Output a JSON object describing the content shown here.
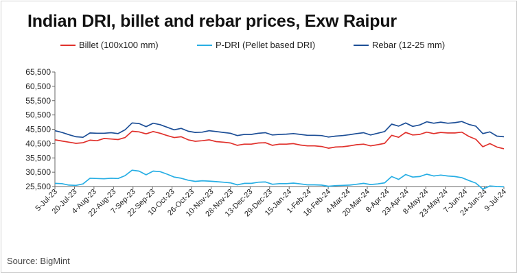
{
  "chart_data": {
    "type": "line",
    "title": "Indian DRI, billet and rebar prices, Exw Raipur",
    "source": "Source: BigMint",
    "legend_position": "top",
    "grid": false,
    "ylim": [
      25500,
      65500
    ],
    "y_ticks": [
      "65,500",
      "60,500",
      "55,500",
      "50,500",
      "45,500",
      "40,500",
      "35,500",
      "30,500",
      "25,500"
    ],
    "y_tick_values": [
      65500,
      60500,
      55500,
      50500,
      45500,
      40500,
      35500,
      30500,
      25500
    ],
    "x_ticks": [
      "5-Jul-23",
      "20-Jul-23",
      "4-Aug-23",
      "22-Aug-23",
      "7-Sep-23",
      "22-Sep-23",
      "10-Oct-23",
      "26-Oct-23",
      "10-Nov-23",
      "28-Nov-23",
      "13-Dec-23",
      "29-Dec-23",
      "15-Jan-24",
      "1-Feb-24",
      "16-Feb-24",
      "4-Mar-24",
      "20-Mar-24",
      "8-Apr-24",
      "23-Apr-24",
      "8-May-24",
      "23-May-24",
      "7-Jun-24",
      "24-Jun-24",
      "9-Jul-24"
    ],
    "series": [
      {
        "name": "Billet (100x100 mm)",
        "color": "#e0302b",
        "values": [
          41800,
          41400,
          41000,
          40600,
          40800,
          41700,
          41500,
          42300,
          42100,
          41900,
          42600,
          44800,
          44600,
          43900,
          44700,
          44100,
          43300,
          42600,
          42900,
          41800,
          41300,
          41500,
          41800,
          41200,
          41000,
          40700,
          39900,
          40300,
          40300,
          40700,
          40800,
          39900,
          40300,
          40300,
          40500,
          40000,
          39700,
          39700,
          39500,
          38900,
          39300,
          39400,
          39700,
          40100,
          40300,
          39700,
          40100,
          40600,
          43400,
          42700,
          44400,
          43500,
          43700,
          44500,
          44000,
          44400,
          44200,
          44200,
          44500,
          43000,
          42000,
          39400,
          40500,
          39300,
          38700
        ]
      },
      {
        "name": "P-DRI (Pellet based DRI)",
        "color": "#27aee4",
        "values": [
          26600,
          26500,
          26000,
          25900,
          26400,
          28400,
          28300,
          28200,
          28400,
          28300,
          29300,
          31200,
          30900,
          29600,
          30900,
          30700,
          29800,
          28800,
          28400,
          27700,
          27300,
          27500,
          27400,
          27200,
          27000,
          26800,
          26100,
          26600,
          26600,
          27000,
          27100,
          26300,
          26500,
          26500,
          26700,
          26400,
          26100,
          26100,
          26000,
          25600,
          25800,
          25900,
          26000,
          26300,
          26600,
          26200,
          26400,
          26800,
          29000,
          28000,
          29700,
          28800,
          29000,
          29800,
          29200,
          29500,
          29200,
          29000,
          28600,
          27600,
          26700,
          24600,
          25700,
          25500,
          25400
        ]
      },
      {
        "name": "Rebar (12-25 mm)",
        "color": "#1c4e96",
        "values": [
          45000,
          44400,
          43600,
          42900,
          42700,
          44200,
          44100,
          44100,
          44300,
          44000,
          45300,
          47700,
          47500,
          46400,
          47600,
          47100,
          46200,
          45300,
          45800,
          44800,
          44400,
          44500,
          45000,
          44700,
          44400,
          44100,
          43300,
          43700,
          43700,
          44100,
          44300,
          43500,
          43700,
          43800,
          44000,
          43700,
          43400,
          43400,
          43300,
          42800,
          43100,
          43300,
          43600,
          44000,
          44300,
          43500,
          44100,
          44700,
          47300,
          46600,
          47700,
          46500,
          47000,
          48100,
          47600,
          48000,
          47600,
          47800,
          48200,
          47200,
          46600,
          44000,
          44600,
          43100,
          42900
        ]
      }
    ]
  }
}
